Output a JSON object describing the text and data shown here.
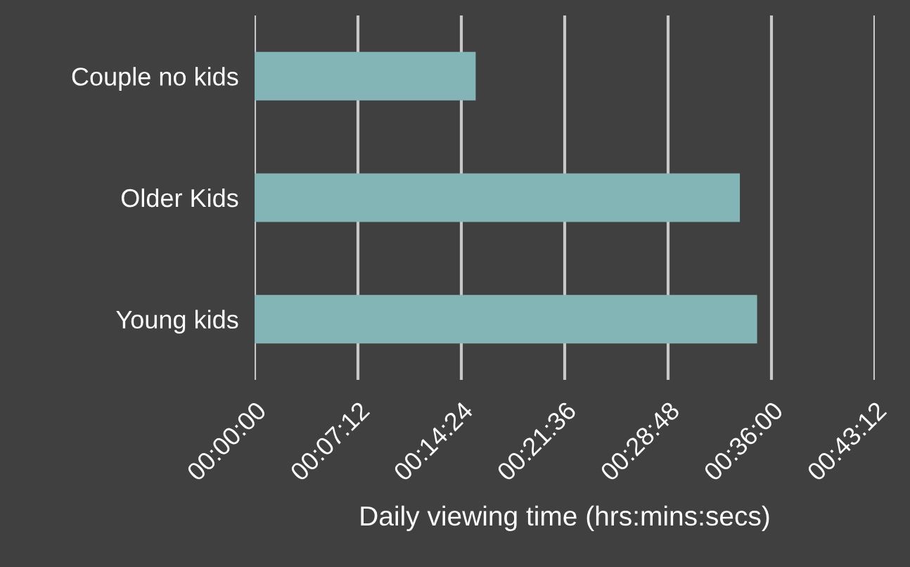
{
  "chart_data": {
    "type": "bar",
    "orientation": "horizontal",
    "categories": [
      "Couple no kids",
      "Older Kids",
      "Young kids"
    ],
    "values": [
      15.4,
      33.8,
      35.0
    ],
    "color": "#84b5b6",
    "xlabel": "Daily viewing time (hrs:mins:secs)",
    "xlim": [
      0,
      43.2
    ],
    "xticks": [
      {
        "value": 0,
        "label": "00:00:00"
      },
      {
        "value": 7.2,
        "label": "00:07:12"
      },
      {
        "value": 14.4,
        "label": "00:14:24"
      },
      {
        "value": 21.6,
        "label": "00:21:36"
      },
      {
        "value": 28.8,
        "label": "00:28:48"
      },
      {
        "value": 36,
        "label": "00:36:00"
      },
      {
        "value": 43.2,
        "label": "00:43:12"
      }
    ],
    "grid": "x"
  }
}
